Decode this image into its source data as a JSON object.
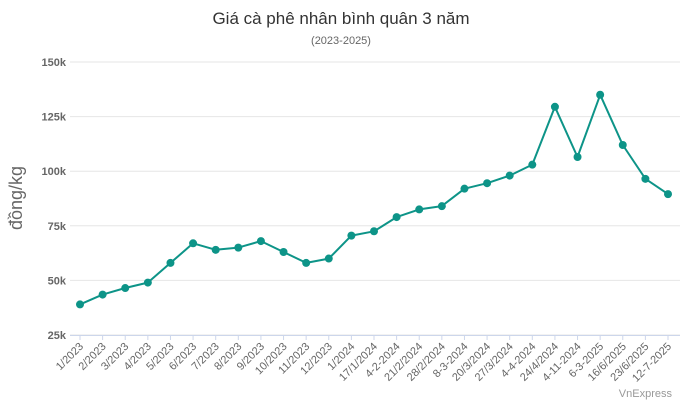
{
  "chart_data": {
    "type": "line",
    "title": "Giá cà phê nhân bình quân 3 năm",
    "subtitle": "(2023-2025)",
    "xlabel": "",
    "ylabel": "đồng/kg",
    "ylim": [
      25000,
      150000
    ],
    "yticks": [
      {
        "value": 25000,
        "label": "25k"
      },
      {
        "value": 50000,
        "label": "50k"
      },
      {
        "value": 75000,
        "label": "75k"
      },
      {
        "value": 100000,
        "label": "100k"
      },
      {
        "value": 125000,
        "label": "125k"
      },
      {
        "value": 150000,
        "label": "150k"
      }
    ],
    "categories": [
      "1/2023",
      "2/2023",
      "3/2023",
      "4/2023",
      "5/2023",
      "6/2023",
      "7/2023",
      "8/2023",
      "9/2023",
      "10/2023",
      "11/2023",
      "12/2023",
      "1/2024",
      "17/1/2024",
      "4-2-2024",
      "21/2/2024",
      "28/2/2024",
      "8-3-2024",
      "20/3/2024",
      "27/3/2024",
      "4-4-2024",
      "24/4/2024",
      "4-11-2024",
      "6-3-2025",
      "16/6/2025",
      "23/6/2025",
      "12-7-2025"
    ],
    "series": [
      {
        "values": [
          39000,
          43500,
          46500,
          49000,
          58000,
          67000,
          64000,
          65000,
          68000,
          63000,
          58000,
          60000,
          70500,
          72500,
          79000,
          82500,
          84000,
          92000,
          94500,
          98000,
          103000,
          129500,
          106500,
          135000,
          112000,
          96500,
          89500
        ]
      }
    ],
    "grid": true,
    "legend": "none",
    "line_color": "#0d9488",
    "credit": "VnExpress"
  }
}
